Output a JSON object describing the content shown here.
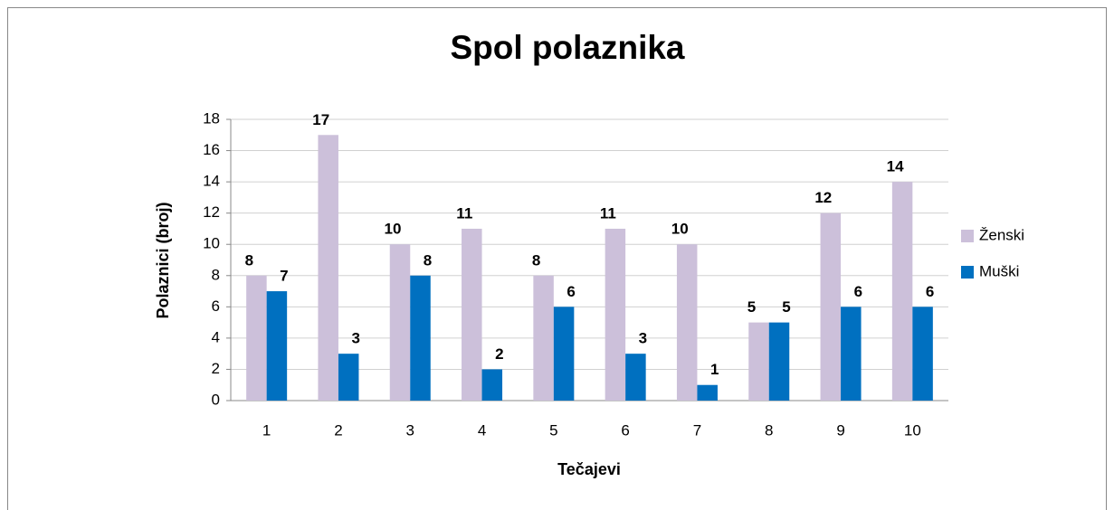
{
  "chart_data": {
    "type": "bar",
    "title": "Spol polaznika",
    "x_label": "Tečajevi",
    "y_label": "Polaznici (broj)",
    "categories": [
      "1",
      "2",
      "3",
      "4",
      "5",
      "6",
      "7",
      "8",
      "9",
      "10"
    ],
    "series": [
      {
        "name": "Ženski",
        "color": "#ccc0da",
        "values": [
          8,
          17,
          10,
          11,
          8,
          11,
          10,
          5,
          12,
          14
        ]
      },
      {
        "name": "Muški",
        "color": "#0070c0",
        "values": [
          7,
          3,
          8,
          2,
          6,
          3,
          1,
          5,
          6,
          6
        ]
      }
    ],
    "ylim": [
      0,
      18
    ],
    "yticks": [
      0,
      2,
      4,
      6,
      8,
      10,
      12,
      14,
      16,
      18
    ],
    "grid": true,
    "legend": "right"
  }
}
